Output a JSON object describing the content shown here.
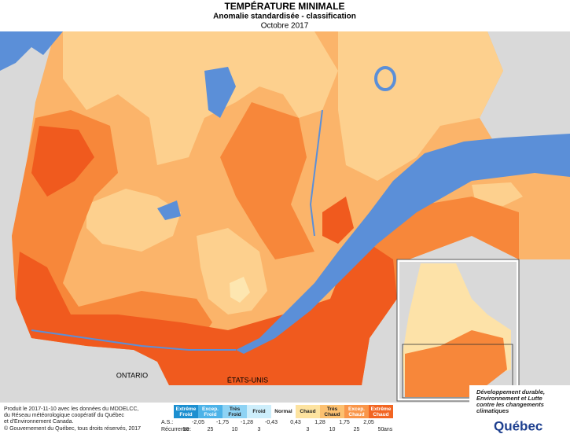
{
  "header": {
    "title": "TEMPÉRATURE MINIMALE",
    "subtitle": "Anomalie standardisée - classification",
    "period": "Octobre 2017"
  },
  "map": {
    "labels": [
      "ONTARIO",
      "ÉTATS-UNIS"
    ]
  },
  "credits": [
    "Produit le 2017-11-10 avec les données du MDDELCC,",
    "du Réseau météorologique coopératif du Québec",
    "et d'Environnement Canada.",
    "© Gouvernement du Québec, tous droits réservés, 2017"
  ],
  "legend": {
    "classes": [
      "Extrême Froid",
      "Excep. Froid",
      "Très Froid",
      "Froid",
      "Normal",
      "Chaud",
      "Très Chaud",
      "Excep. Chaud",
      "Extrême Chaud"
    ],
    "colors": [
      "#1c8fd0",
      "#4db3e8",
      "#8ed3f4",
      "#cdeefb",
      "#ffffff",
      "#fde3a0",
      "#fcc070",
      "#f9964a",
      "#f26522"
    ],
    "as_label": "A.S.:",
    "as_values": [
      "-2,05",
      "-1,75",
      "-1,28",
      "-0,43",
      "0,43",
      "1,28",
      "1,75",
      "2,05"
    ],
    "recurrence_label": "Récurrence:",
    "recurrence_values": [
      50,
      25,
      10,
      3,
      3,
      10,
      25,
      50
    ],
    "recurrence_unit": "ans"
  },
  "logo": {
    "ministry": [
      "Développement durable,",
      "Environnement et Lutte",
      "contre les changements",
      "climatiques"
    ],
    "name": "Québec"
  }
}
